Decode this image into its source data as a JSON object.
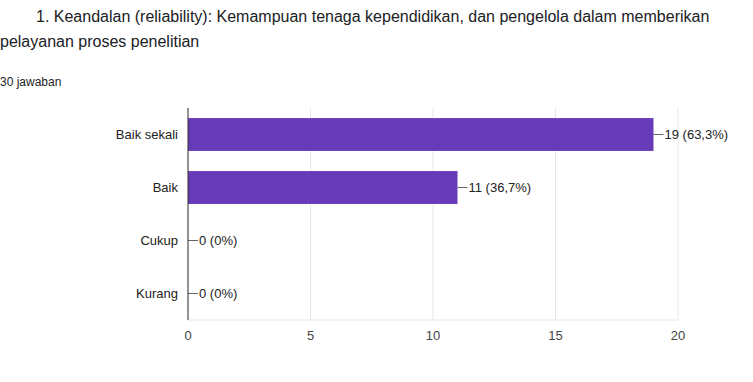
{
  "chart_data": {
    "type": "bar",
    "orientation": "horizontal",
    "title": "1. Keandalan (reliability):  Kemampuan tenaga kependidikan, dan pengelola dalam memberikan pelayanan proses penelitian",
    "subtitle": "30 jawaban",
    "categories": [
      "Baik sekali",
      "Baik",
      "Cukup",
      "Kurang"
    ],
    "values": [
      19,
      11,
      0,
      0
    ],
    "value_labels": [
      "19 (63,3%)",
      "11 (36,7%)",
      "0 (0%)",
      "0 (0%)"
    ],
    "color": "#673ab7",
    "xlim": [
      0,
      20
    ],
    "xticks": [
      0,
      5,
      10,
      15,
      20
    ],
    "grid": true,
    "data_labels": true
  }
}
